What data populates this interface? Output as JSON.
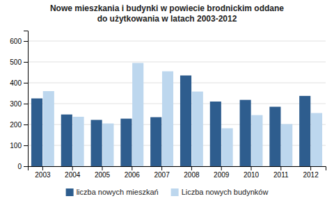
{
  "chart_data": {
    "type": "bar",
    "title": "Nowe mieszkania i budynki w powiecie brodnickim oddane\ndo użytkowania w latach 2003-2012",
    "categories": [
      "2003",
      "2004",
      "2005",
      "2006",
      "2007",
      "2008",
      "2009",
      "2010",
      "2011",
      "2012"
    ],
    "series": [
      {
        "name": "liczba nowych mieszkań",
        "color": "#2E5D8E",
        "values": [
          325,
          248,
          222,
          228,
          235,
          435,
          310,
          318,
          285,
          337
        ]
      },
      {
        "name": "Liczba nowych budynków",
        "color": "#BDD7EE",
        "values": [
          360,
          237,
          205,
          495,
          455,
          358,
          182,
          245,
          202,
          255
        ]
      }
    ],
    "ylim": [
      0,
      650
    ],
    "yticks": [
      0,
      100,
      200,
      300,
      400,
      500,
      600
    ],
    "grid": true,
    "legend": "bottom"
  }
}
